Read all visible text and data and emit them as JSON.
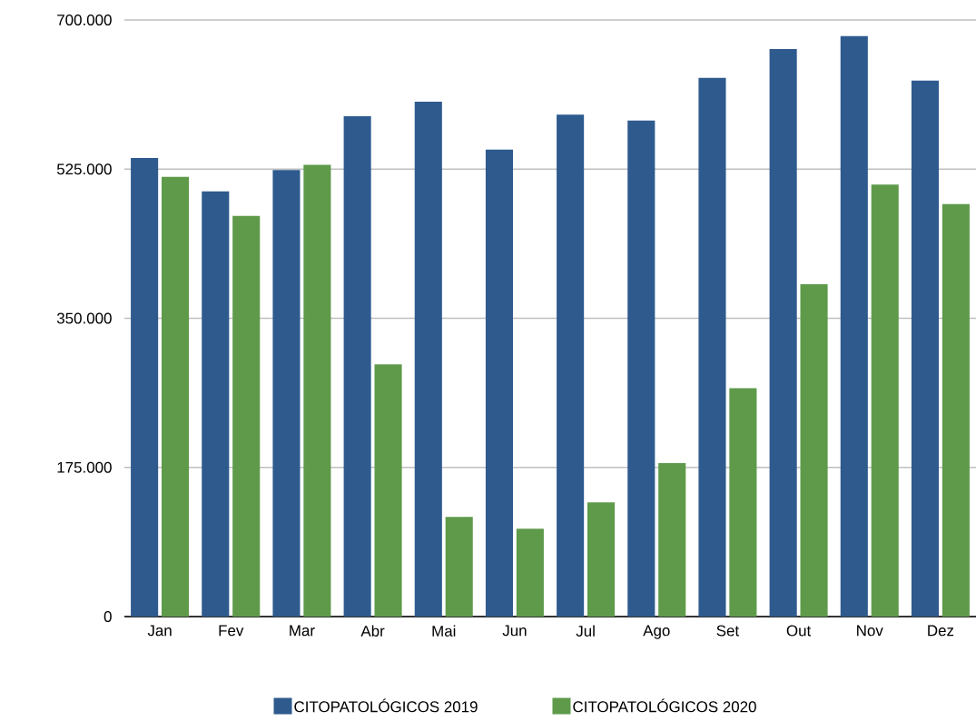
{
  "chart_data": {
    "type": "bar",
    "categories": [
      "Jan",
      "Fev",
      "Mar",
      "Abr",
      "Mai",
      "Jun",
      "Jul",
      "Ago",
      "Set",
      "Out",
      "Nov",
      "Dez"
    ],
    "series": [
      {
        "name": "CITOPATOLÓGICOS 2019",
        "color": "#2e5a8e",
        "values": [
          538000,
          499000,
          524000,
          587000,
          604000,
          548000,
          589000,
          582000,
          632000,
          666000,
          681000,
          629000
        ]
      },
      {
        "name": "CITOPATOLÓGICOS 2020",
        "color": "#5e9a4a",
        "values": [
          516000,
          470000,
          530000,
          296000,
          117000,
          103000,
          134000,
          180000,
          268000,
          390000,
          507000,
          484000
        ]
      }
    ],
    "ylim": [
      0,
      700000
    ],
    "yticks": [
      {
        "value": 0,
        "label": "0"
      },
      {
        "value": 175000,
        "label": "175.000"
      },
      {
        "value": 350000,
        "label": "350.000"
      },
      {
        "value": 525000,
        "label": "525.000"
      },
      {
        "value": 700000,
        "label": "700.000"
      }
    ],
    "grid": "y",
    "legend": "bottom"
  }
}
